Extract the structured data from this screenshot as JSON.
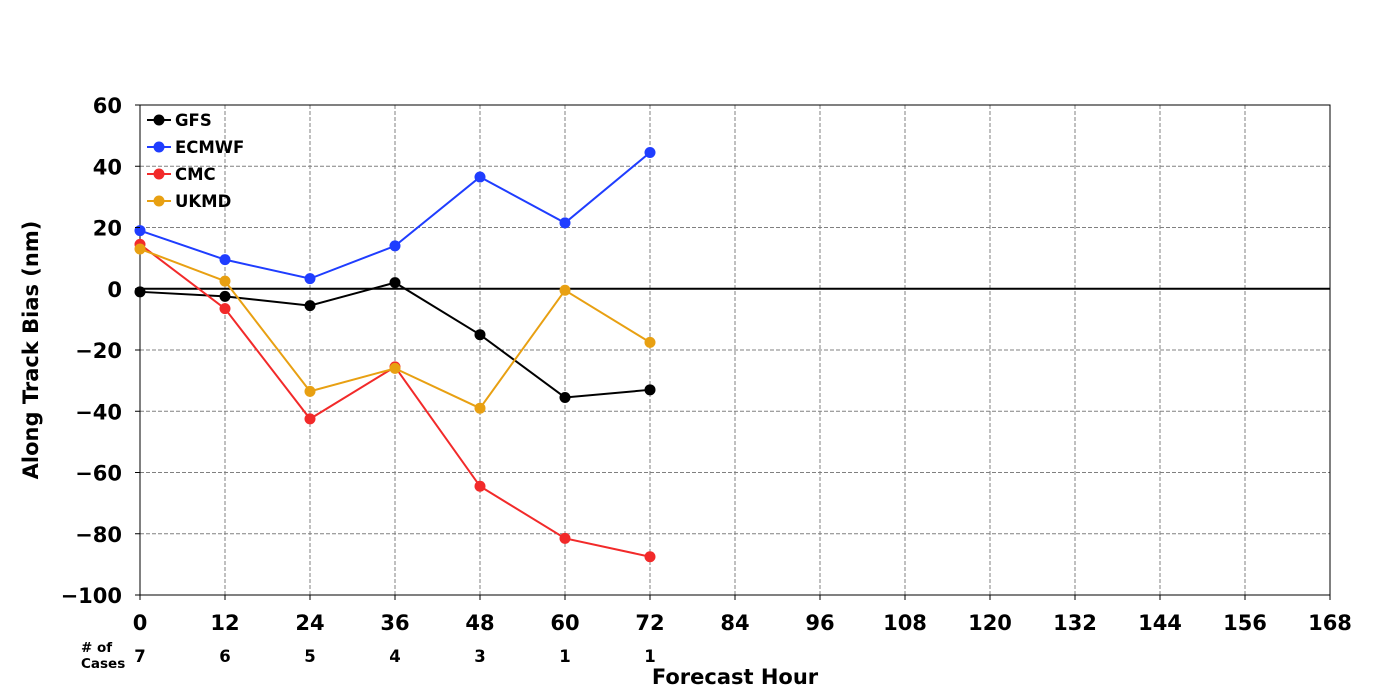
{
  "chart_data": {
    "type": "line",
    "title": "",
    "xlabel": "Forecast Hour",
    "ylabel": "Along Track Bias (nm)",
    "xlim": [
      0,
      168
    ],
    "ylim": [
      -100,
      60
    ],
    "x_ticks": [
      0,
      12,
      24,
      36,
      48,
      60,
      72,
      84,
      96,
      108,
      120,
      132,
      144,
      156,
      168
    ],
    "x_tick_labels": [
      "0",
      "12",
      "24",
      "36",
      "48",
      "60",
      "72",
      "84",
      "96",
      "108",
      "120",
      "132",
      "144",
      "156",
      "168"
    ],
    "y_ticks": [
      -100,
      -80,
      -60,
      -40,
      -20,
      0,
      20,
      40,
      60
    ],
    "y_tick_labels": [
      "−100",
      "−80",
      "−60",
      "−40",
      "−20",
      "0",
      "20",
      "40",
      "60"
    ],
    "grid": true,
    "zero_line": true,
    "legend_position": "top-left",
    "x": [
      0,
      12,
      24,
      36,
      48,
      60,
      72
    ],
    "series": [
      {
        "name": "GFS",
        "color": "#000000",
        "values": [
          -1,
          -2.5,
          -5.5,
          2,
          -15,
          -35.5,
          -33
        ]
      },
      {
        "name": "ECMWF",
        "color": "#1f3dff",
        "values": [
          19,
          9.5,
          3.3,
          14,
          36.5,
          21.5,
          44.5
        ]
      },
      {
        "name": "CMC",
        "color": "#f22a2a",
        "values": [
          14.5,
          -6.5,
          -42.5,
          -25.5,
          -64.5,
          -81.5,
          -87.5
        ]
      },
      {
        "name": "UKMD",
        "color": "#e8a012",
        "values": [
          13,
          2.5,
          -33.5,
          -26,
          -39,
          -0.5,
          -17.5
        ]
      }
    ],
    "cases": {
      "label_line1": "# of",
      "label_line2": "Cases",
      "values": [
        "7",
        "6",
        "5",
        "4",
        "3",
        "1",
        "1"
      ]
    }
  }
}
